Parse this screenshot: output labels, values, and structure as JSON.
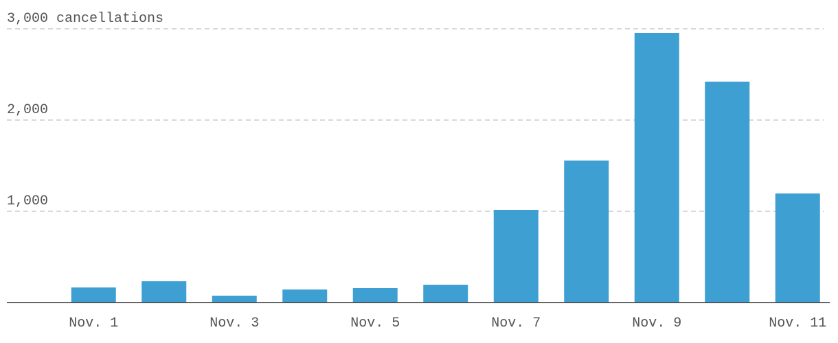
{
  "chart_data": {
    "type": "bar",
    "categories": [
      "Nov. 1",
      null,
      "Nov. 3",
      null,
      "Nov. 5",
      null,
      "Nov. 7",
      null,
      "Nov. 9",
      null,
      "Nov. 11"
    ],
    "values": [
      165,
      233,
      75,
      143,
      158,
      195,
      1015,
      1556,
      2955,
      2421,
      1195
    ],
    "color": "#3d9fd2",
    "ylim": [
      0,
      3000
    ],
    "yticks": [
      {
        "value": 1000,
        "label": "1,000"
      },
      {
        "value": 2000,
        "label": "2,000"
      },
      {
        "value": 3000,
        "label": "3,000 cancellations"
      }
    ],
    "grid": true
  }
}
